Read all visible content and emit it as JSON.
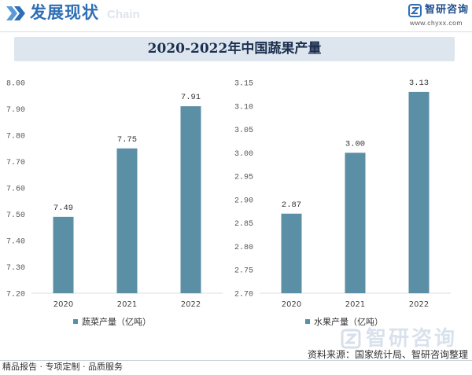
{
  "header": {
    "section_title": "发展现状",
    "watermark_text": "Chain",
    "logo_name": "智研咨询",
    "logo_url_text": "www.chyxx.com",
    "icons": [
      "double-chevron-icon",
      "zhiyan-logo-icon"
    ]
  },
  "title": "2020-2022年中国蔬果产量",
  "colors": {
    "accent": "#2f6fb6",
    "title_band": "#dde6ee",
    "title_text": "#1d2f4f",
    "bar": "#5b8fa6"
  },
  "chart_data": [
    {
      "type": "bar",
      "categories": [
        "2020",
        "2021",
        "2022"
      ],
      "series": [
        {
          "name": "蔬菜产量（亿吨）",
          "values": [
            7.49,
            7.75,
            7.91
          ]
        }
      ],
      "yticks": [
        7.2,
        7.3,
        7.4,
        7.5,
        7.6,
        7.7,
        7.8,
        7.9,
        8.0
      ],
      "ylim": [
        7.2,
        8.0
      ],
      "data_labels": true,
      "grid": false,
      "legend_position": "bottom",
      "bar_color": "#5b8fa6"
    },
    {
      "type": "bar",
      "categories": [
        "2020",
        "2021",
        "2022"
      ],
      "series": [
        {
          "name": "水果产量（亿吨）",
          "values": [
            2.87,
            3.0,
            3.13
          ]
        }
      ],
      "yticks": [
        2.7,
        2.75,
        2.8,
        2.85,
        2.9,
        2.95,
        3.0,
        3.05,
        3.1,
        3.15
      ],
      "ylim": [
        2.7,
        3.15
      ],
      "data_labels": true,
      "grid": false,
      "legend_position": "bottom",
      "bar_color": "#5b8fa6"
    }
  ],
  "footer": {
    "watermark_logo": "智研咨询",
    "source": "资料来源：国家统计局、智研咨询整理",
    "tagline": "精品报告 · 专项定制 · 品质服务"
  }
}
